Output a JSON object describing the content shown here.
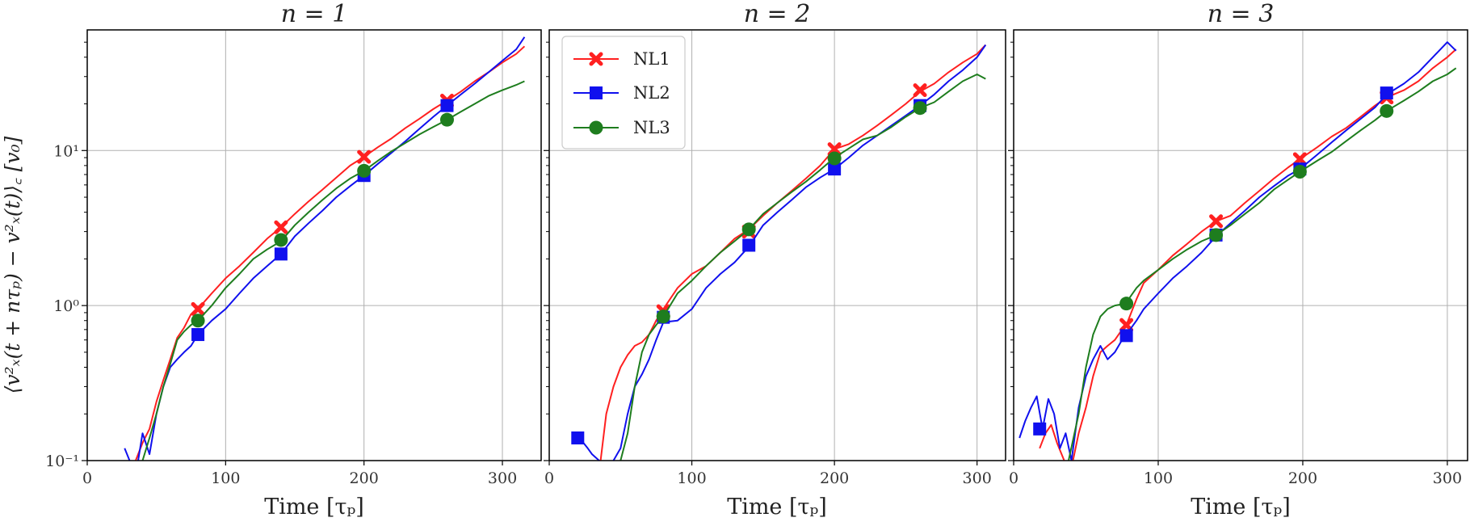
{
  "figure": {
    "ylabel": "⟨v²ₓ(t + nτₚ) − v²ₓ(t)⟩꜀ [v₀]",
    "xlabel": "Time [τₚ]"
  },
  "legend": [
    {
      "name": "NL1",
      "color": "#ff2020",
      "marker": "x"
    },
    {
      "name": "NL2",
      "color": "#1010ee",
      "marker": "square"
    },
    {
      "name": "NL3",
      "color": "#1e7d1e",
      "marker": "circle"
    }
  ],
  "chart_data": [
    {
      "type": "line",
      "title": "n = 1",
      "xlabel": "Time [τₚ]",
      "ylabel": "⟨v²ₓ(t + nτₚ) − v²ₓ(t)⟩꜀ [v₀]",
      "xlim": [
        0,
        328
      ],
      "ylim": [
        0.1,
        60
      ],
      "yscale": "log",
      "xticks": [
        0,
        100,
        200,
        300
      ],
      "xtick_labels": [
        "0",
        "100",
        "200",
        "300"
      ],
      "yticks": [
        0.1,
        1,
        10
      ],
      "ytick_labels": [
        "10⁻¹",
        "10⁰",
        "10¹"
      ],
      "grid": true,
      "legend_position": "none",
      "series": [
        {
          "name": "NL1",
          "x": [
            33,
            40,
            45,
            50,
            55,
            60,
            65,
            70,
            75,
            80,
            90,
            100,
            110,
            120,
            130,
            140,
            150,
            160,
            170,
            180,
            190,
            200,
            210,
            220,
            230,
            240,
            250,
            260,
            270,
            280,
            290,
            300,
            310,
            316
          ],
          "y": [
            0.09,
            0.13,
            0.16,
            0.24,
            0.33,
            0.45,
            0.62,
            0.72,
            0.88,
            0.95,
            1.2,
            1.5,
            1.8,
            2.2,
            2.7,
            3.2,
            3.9,
            4.7,
            5.6,
            6.7,
            8.0,
            9.1,
            10.5,
            12,
            14,
            16,
            18.5,
            21,
            24,
            28,
            32,
            37,
            42,
            47
          ],
          "markers_x": [
            80,
            140,
            200,
            260
          ],
          "markers_y": [
            0.95,
            3.2,
            9.1,
            21
          ]
        },
        {
          "name": "NL2",
          "x": [
            27,
            35,
            40,
            45,
            50,
            55,
            60,
            65,
            70,
            75,
            80,
            90,
            100,
            110,
            120,
            130,
            140,
            150,
            160,
            170,
            180,
            190,
            200,
            210,
            220,
            230,
            240,
            250,
            260,
            270,
            280,
            290,
            300,
            310,
            316
          ],
          "y": [
            0.12,
            0.08,
            0.15,
            0.11,
            0.2,
            0.3,
            0.4,
            0.45,
            0.5,
            0.55,
            0.65,
            0.8,
            0.95,
            1.2,
            1.5,
            1.8,
            2.15,
            2.8,
            3.4,
            4.1,
            5.0,
            5.9,
            6.9,
            8.2,
            9.7,
            11.5,
            13.8,
            16.5,
            19.5,
            23,
            27,
            32,
            38,
            45,
            54
          ],
          "markers_x": [
            80,
            140,
            200,
            260
          ],
          "markers_y": [
            0.65,
            2.15,
            6.9,
            19.5
          ]
        },
        {
          "name": "NL3",
          "x": [
            37,
            40,
            45,
            50,
            55,
            60,
            65,
            70,
            75,
            80,
            90,
            100,
            110,
            120,
            130,
            140,
            150,
            160,
            170,
            180,
            190,
            200,
            210,
            220,
            230,
            240,
            250,
            260,
            270,
            280,
            290,
            300,
            310,
            316
          ],
          "y": [
            0.08,
            0.1,
            0.14,
            0.2,
            0.3,
            0.42,
            0.6,
            0.68,
            0.75,
            0.8,
            1.0,
            1.3,
            1.6,
            2.0,
            2.3,
            2.6,
            3.3,
            4.0,
            4.8,
            5.7,
            6.6,
            7.4,
            8.6,
            9.9,
            11.2,
            12.7,
            14.2,
            15.8,
            17.8,
            20,
            22.5,
            24.5,
            26.5,
            28
          ],
          "markers_x": [
            80,
            140,
            200,
            260
          ],
          "markers_y": [
            0.8,
            2.65,
            7.4,
            15.8
          ]
        }
      ]
    },
    {
      "type": "line",
      "title": "n = 2",
      "xlabel": "Time [τₚ]",
      "ylabel": "",
      "xlim": [
        0,
        320
      ],
      "ylim": [
        0.1,
        60
      ],
      "yscale": "log",
      "xticks": [
        0,
        100,
        200,
        300
      ],
      "xtick_labels": [
        "0",
        "100",
        "200",
        "300"
      ],
      "yticks": [
        0.1,
        1,
        10
      ],
      "ytick_labels": [
        "",
        "",
        ""
      ],
      "grid": true,
      "legend_position": "top-left",
      "series": [
        {
          "name": "NL1",
          "x": [
            36,
            40,
            45,
            50,
            55,
            60,
            65,
            70,
            75,
            80,
            90,
            100,
            110,
            120,
            130,
            140,
            150,
            160,
            170,
            180,
            190,
            200,
            210,
            220,
            230,
            240,
            250,
            260,
            270,
            280,
            290,
            300,
            306
          ],
          "y": [
            0.1,
            0.2,
            0.3,
            0.4,
            0.48,
            0.55,
            0.58,
            0.65,
            0.8,
            0.95,
            1.3,
            1.6,
            1.8,
            2.2,
            2.7,
            3.1,
            3.8,
            4.6,
            5.5,
            6.6,
            8.0,
            10.2,
            11,
            12.5,
            14.5,
            17,
            20,
            24,
            27,
            32,
            37,
            42,
            48
          ],
          "markers_x": [
            80,
            140,
            200,
            260
          ],
          "markers_y": [
            0.92,
            3.0,
            10.2,
            24.5
          ]
        },
        {
          "name": "NL2",
          "x": [
            20,
            24,
            27,
            30,
            35,
            40,
            45,
            50,
            55,
            60,
            65,
            70,
            75,
            80,
            90,
            100,
            110,
            120,
            130,
            140,
            150,
            160,
            170,
            180,
            190,
            200,
            210,
            220,
            230,
            240,
            250,
            260,
            270,
            280,
            290,
            300,
            306
          ],
          "y": [
            0.14,
            0.13,
            0.12,
            0.11,
            0.1,
            0.09,
            0.1,
            0.12,
            0.2,
            0.3,
            0.36,
            0.45,
            0.6,
            0.78,
            0.8,
            0.95,
            1.3,
            1.6,
            1.9,
            2.4,
            3.3,
            4.0,
            4.8,
            5.8,
            6.7,
            7.6,
            9.0,
            10.8,
            12.5,
            14.5,
            16.8,
            19.5,
            23,
            28,
            33,
            40,
            48
          ],
          "markers_x": [
            20,
            80,
            140,
            200,
            260
          ],
          "markers_y": [
            0.14,
            0.84,
            2.45,
            7.6,
            19.5
          ]
        },
        {
          "name": "NL3",
          "x": [
            50,
            55,
            60,
            65,
            70,
            75,
            80,
            90,
            100,
            110,
            120,
            130,
            140,
            150,
            160,
            170,
            180,
            190,
            200,
            210,
            220,
            230,
            240,
            250,
            260,
            270,
            280,
            290,
            300,
            306
          ],
          "y": [
            0.1,
            0.15,
            0.3,
            0.5,
            0.65,
            0.75,
            0.85,
            1.2,
            1.45,
            1.8,
            2.2,
            2.6,
            3.1,
            3.9,
            4.6,
            5.4,
            6.3,
            7.5,
            9.0,
            10.3,
            11.8,
            12.5,
            14.2,
            16.5,
            18.8,
            20.5,
            24,
            28,
            31,
            29
          ],
          "markers_x": [
            80,
            140,
            200,
            260
          ],
          "markers_y": [
            0.85,
            3.1,
            8.9,
            18.8
          ]
        }
      ]
    },
    {
      "type": "line",
      "title": "n = 3",
      "xlabel": "Time [τₚ]",
      "ylabel": "",
      "xlim": [
        0,
        314
      ],
      "ylim": [
        0.1,
        60
      ],
      "yscale": "log",
      "xticks": [
        0,
        100,
        200,
        300
      ],
      "xtick_labels": [
        "0",
        "100",
        "200",
        "300"
      ],
      "yticks": [
        0.1,
        1,
        10
      ],
      "ytick_labels": [
        "",
        "",
        ""
      ],
      "grid": true,
      "legend_position": "none",
      "series": [
        {
          "name": "NL1",
          "x": [
            18,
            22,
            26,
            30,
            35,
            40,
            45,
            50,
            55,
            60,
            65,
            70,
            75,
            78,
            85,
            90,
            100,
            110,
            120,
            130,
            140,
            150,
            160,
            170,
            180,
            190,
            198,
            210,
            220,
            230,
            240,
            250,
            258,
            270,
            280,
            290,
            300,
            306
          ],
          "y": [
            0.12,
            0.15,
            0.17,
            0.13,
            0.1,
            0.09,
            0.15,
            0.22,
            0.35,
            0.5,
            0.55,
            0.6,
            0.7,
            0.75,
            1.1,
            1.4,
            1.7,
            2.1,
            2.5,
            3.0,
            3.5,
            3.8,
            4.6,
            5.5,
            6.6,
            7.8,
            8.8,
            10.5,
            12.3,
            14,
            16.5,
            19.5,
            22,
            24.5,
            28,
            34,
            40,
            45
          ],
          "markers_x": [
            78,
            140,
            198,
            258
          ],
          "markers_y": [
            0.75,
            3.5,
            8.8,
            22
          ]
        },
        {
          "name": "NL2",
          "x": [
            4,
            8,
            12,
            16,
            20,
            24,
            28,
            32,
            36,
            40,
            45,
            50,
            55,
            60,
            65,
            70,
            75,
            78,
            85,
            90,
            100,
            110,
            120,
            130,
            140,
            150,
            160,
            170,
            180,
            190,
            198,
            210,
            220,
            230,
            240,
            250,
            258,
            270,
            280,
            290,
            300,
            306
          ],
          "y": [
            0.14,
            0.18,
            0.22,
            0.26,
            0.16,
            0.25,
            0.2,
            0.12,
            0.15,
            0.1,
            0.22,
            0.35,
            0.45,
            0.55,
            0.45,
            0.5,
            0.6,
            0.65,
            0.8,
            0.95,
            1.2,
            1.5,
            1.8,
            2.2,
            2.8,
            3.4,
            4.1,
            5.0,
            5.9,
            6.9,
            7.6,
            9.4,
            11.3,
            13.5,
            16,
            19,
            23,
            27,
            32,
            40,
            50,
            44
          ],
          "markers_x": [
            18,
            78,
            140,
            198,
            258
          ],
          "markers_y": [
            0.16,
            0.64,
            2.85,
            7.6,
            23.5
          ]
        },
        {
          "name": "NL3",
          "x": [
            18,
            30,
            38,
            45,
            50,
            55,
            60,
            65,
            70,
            75,
            78,
            85,
            90,
            100,
            110,
            120,
            130,
            140,
            150,
            160,
            170,
            180,
            190,
            198,
            210,
            220,
            230,
            240,
            250,
            258,
            270,
            280,
            290,
            300,
            306
          ],
          "y": [
            0.09,
            0.09,
            0.1,
            0.2,
            0.4,
            0.65,
            0.85,
            0.95,
            1.0,
            1.02,
            1.05,
            1.3,
            1.45,
            1.7,
            2.0,
            2.3,
            2.6,
            2.85,
            3.3,
            3.9,
            4.6,
            5.6,
            6.5,
            7.3,
            8.6,
            9.8,
            11.5,
            13.5,
            15.7,
            18,
            21,
            24,
            28,
            31,
            34
          ],
          "markers_x": [
            78,
            140,
            198,
            258
          ],
          "markers_y": [
            1.03,
            2.85,
            7.3,
            18
          ]
        }
      ]
    }
  ]
}
